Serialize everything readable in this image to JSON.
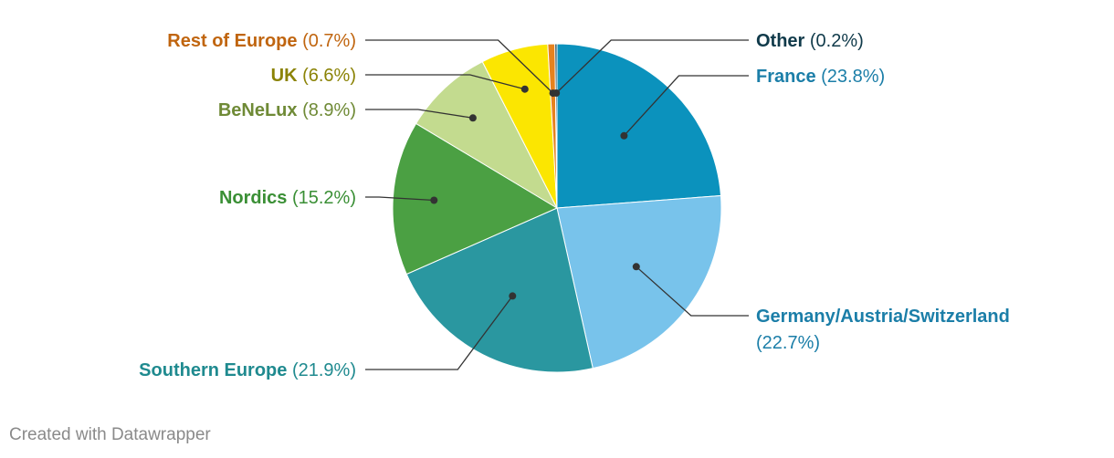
{
  "chart_data": {
    "type": "pie",
    "categories": [
      "France",
      "Germany/Austria/Switzerland",
      "Southern Europe",
      "Nordics",
      "BeNeLux",
      "UK",
      "Rest of Europe",
      "Other"
    ],
    "values": [
      23.8,
      22.7,
      21.9,
      15.2,
      8.9,
      6.6,
      0.7,
      0.2
    ],
    "value_labels": [
      "(23.8%)",
      "(22.7%)",
      "(21.9%)",
      "(15.2%)",
      "(8.9%)",
      "(6.6%)",
      "(0.7%)",
      "(0.2%)"
    ],
    "colors": [
      "#0b92bd",
      "#78c3eb",
      "#2a97a0",
      "#4ba043",
      "#c3db8f",
      "#fbe601",
      "#e6821e",
      "#0d3b4c"
    ],
    "label_colors": [
      "#1b7ea8",
      "#1b7ea8",
      "#1f8a8f",
      "#3a8f35",
      "#6f8a36",
      "#8b8306",
      "#c0650f",
      "#103a4a"
    ],
    "title": "",
    "legend": "none"
  },
  "footer": {
    "credit": "Created with Datawrapper"
  }
}
